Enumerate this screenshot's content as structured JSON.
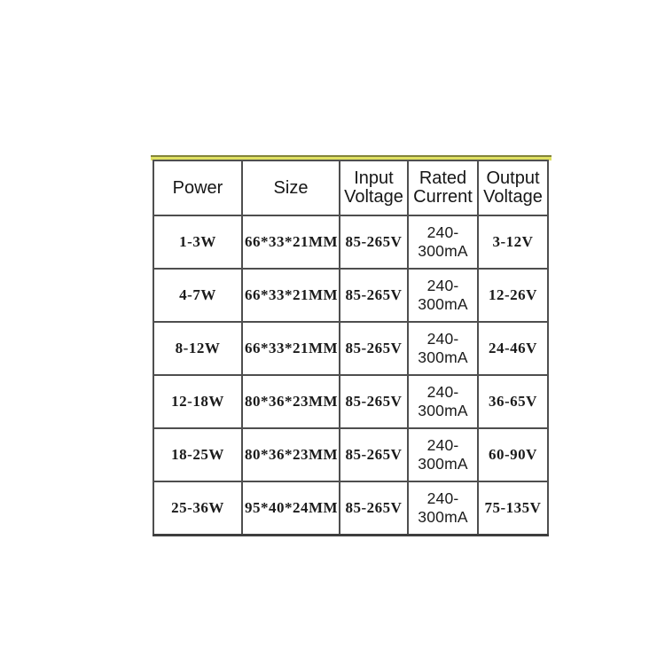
{
  "page": {
    "background_color": "#ffffff"
  },
  "accent_strip": {
    "fill_color": "#e0e162",
    "edge_color": "#83843b"
  },
  "chart_data": {
    "type": "table",
    "title": "",
    "columns": [
      "Power",
      "Size",
      "Input Voltage",
      "Rated Current",
      "Output Voltage"
    ],
    "rows": [
      [
        "1-3W",
        "66*33*21MM",
        "85-265V",
        "240-300mA",
        "3-12V"
      ],
      [
        "4-7W",
        "66*33*21MM",
        "85-265V",
        "240-300mA",
        "12-26V"
      ],
      [
        "8-12W",
        "66*33*21MM",
        "85-265V",
        "240-300mA",
        "24-46V"
      ],
      [
        "12-18W",
        "80*36*23MM",
        "85-265V",
        "240-300mA",
        "36-65V"
      ],
      [
        "18-25W",
        "80*36*23MM",
        "85-265V",
        "240-300mA",
        "60-90V"
      ],
      [
        "25-36W",
        "95*40*24MM",
        "85-265V",
        "240-300mA",
        "75-135V"
      ]
    ],
    "layout": {
      "grid": true,
      "border_color": "#4e4e4e",
      "text_color": "#1b1b1b",
      "header_position": "top"
    }
  }
}
